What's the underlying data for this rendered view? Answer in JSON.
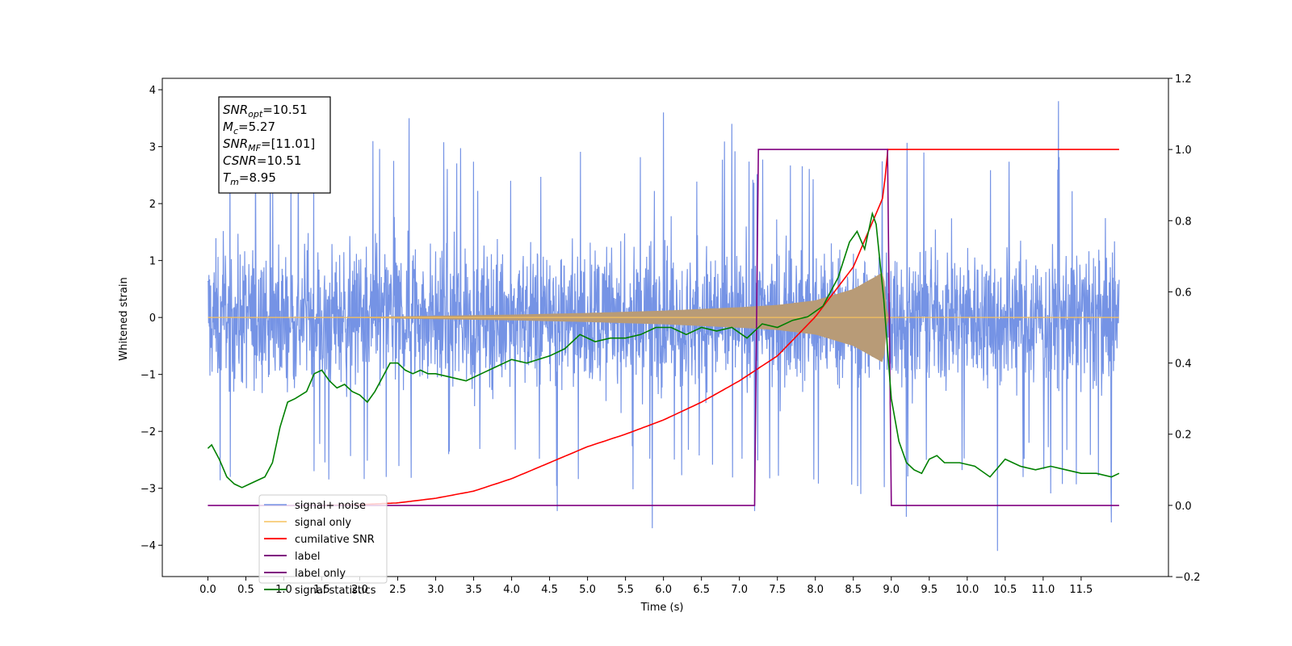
{
  "chart_data": {
    "type": "line",
    "xlabel": "Time (s)",
    "ylabel_left": "Whitened strain",
    "ylabel_right": "",
    "xlim": [
      -0.6,
      12.65
    ],
    "ylim_left": [
      -4.55,
      4.2
    ],
    "ylim_right": [
      -0.2,
      1.2
    ],
    "x_ticks": [
      0.0,
      0.5,
      1.0,
      1.5,
      2.0,
      2.5,
      3.0,
      3.5,
      4.0,
      4.5,
      5.0,
      5.5,
      6.0,
      6.5,
      7.0,
      7.5,
      8.0,
      8.5,
      9.0,
      9.5,
      10.0,
      10.5,
      11.0,
      11.5
    ],
    "x_tick_labels": [
      "0.0",
      "0.5",
      "1.0",
      "1.5",
      "2.0",
      "2.5",
      "3.0",
      "3.5",
      "4.0",
      "4.5",
      "5.0",
      "5.5",
      "6.0",
      "6.5",
      "7.0",
      "7.5",
      "8.0",
      "8.5",
      "9.0",
      "9.5",
      "10.0",
      "10.5",
      "11.0",
      "11.5"
    ],
    "y_left_ticks": [
      -4,
      -3,
      -2,
      -1,
      0,
      1,
      2,
      3,
      4
    ],
    "y_left_tick_labels": [
      "−4",
      "−3",
      "−2",
      "−1",
      "0",
      "1",
      "2",
      "3",
      "4"
    ],
    "y_right_ticks": [
      -0.2,
      0.0,
      0.2,
      0.4,
      0.6,
      0.8,
      1.0,
      1.2
    ],
    "y_right_tick_labels": [
      "−0.2",
      "0.0",
      "0.2",
      "0.4",
      "0.6",
      "0.8",
      "1.0",
      "1.2"
    ],
    "grid": false,
    "legend_position": "lower-left",
    "stats_box": [
      {
        "sym": "SNR",
        "sub": "opt",
        "val": "=10.51"
      },
      {
        "sym": "M",
        "sub": "c",
        "val": "=5.27"
      },
      {
        "sym": "SNR",
        "sub": "MF",
        "val": "=[11.01]"
      },
      {
        "sym": "CSNR",
        "sub": "",
        "val": "=10.51"
      },
      {
        "sym": "T",
        "sub": "m",
        "val": "=8.95"
      }
    ],
    "series": [
      {
        "name": "signal+ noise",
        "color": "#7593e5",
        "axis": "left",
        "kind": "noise",
        "x_range": [
          0.0,
          12.0
        ],
        "typical_range": [
          -2.0,
          2.2
        ],
        "peaks": [
          [
            1.4,
            -2.7
          ],
          [
            2.65,
            3.5
          ],
          [
            2.35,
            -2.8
          ],
          [
            4.6,
            -3.4
          ],
          [
            5.85,
            -3.7
          ],
          [
            6.0,
            3.6
          ],
          [
            6.9,
            3.4
          ],
          [
            7.2,
            -3.4
          ],
          [
            8.6,
            -3.1
          ],
          [
            9.2,
            -3.5
          ],
          [
            10.4,
            -4.1
          ],
          [
            11.2,
            3.8
          ],
          [
            11.9,
            -3.6
          ]
        ]
      },
      {
        "name": "signal only",
        "color": "#f6c25e",
        "axis": "left",
        "kind": "chirp",
        "x": [
          0.0,
          2.0,
          4.0,
          5.0,
          6.0,
          7.0,
          7.5,
          8.0,
          8.5,
          8.9,
          8.95,
          9.0,
          12.0
        ],
        "amplitude": [
          0.0,
          0.01,
          0.05,
          0.08,
          0.12,
          0.18,
          0.22,
          0.3,
          0.5,
          0.8,
          0.0,
          0.0,
          0.0
        ]
      },
      {
        "name": "cumilative SNR",
        "color": "#ff0000",
        "axis": "right",
        "x": [
          1.5,
          2.0,
          2.5,
          3.0,
          3.5,
          4.0,
          4.5,
          5.0,
          5.5,
          6.0,
          6.5,
          7.0,
          7.5,
          8.0,
          8.5,
          8.9,
          8.95,
          12.0
        ],
        "values": [
          0.0,
          0.002,
          0.007,
          0.02,
          0.04,
          0.075,
          0.12,
          0.165,
          0.2,
          0.24,
          0.29,
          0.35,
          0.42,
          0.53,
          0.67,
          0.87,
          1.0,
          1.0
        ]
      },
      {
        "name": "label",
        "color": "#800080",
        "axis": "right",
        "x": [
          0.0,
          7.2,
          7.25,
          8.95,
          9.0,
          12.0
        ],
        "values": [
          0.0,
          0.0,
          1.0,
          1.0,
          0.0,
          0.0
        ]
      },
      {
        "name": "label only",
        "color": "#800080",
        "axis": "right",
        "values": []
      },
      {
        "name": "signal statistics",
        "color": "#008000",
        "axis": "right",
        "x": [
          0.0,
          0.05,
          0.15,
          0.25,
          0.35,
          0.45,
          0.55,
          0.65,
          0.75,
          0.85,
          0.95,
          1.05,
          1.15,
          1.3,
          1.4,
          1.5,
          1.6,
          1.7,
          1.8,
          1.9,
          2.0,
          2.1,
          2.2,
          2.3,
          2.4,
          2.5,
          2.6,
          2.7,
          2.8,
          2.9,
          3.0,
          3.2,
          3.4,
          3.6,
          3.8,
          4.0,
          4.2,
          4.5,
          4.7,
          4.9,
          5.1,
          5.3,
          5.5,
          5.7,
          5.9,
          6.1,
          6.3,
          6.5,
          6.7,
          6.9,
          7.1,
          7.3,
          7.5,
          7.7,
          7.9,
          8.1,
          8.3,
          8.45,
          8.55,
          8.65,
          8.75,
          8.8,
          8.9,
          9.0,
          9.1,
          9.2,
          9.3,
          9.4,
          9.5,
          9.6,
          9.7,
          9.9,
          10.1,
          10.3,
          10.5,
          10.7,
          10.9,
          11.1,
          11.3,
          11.5,
          11.7,
          11.9,
          12.0
        ],
        "values": [
          0.16,
          0.17,
          0.13,
          0.08,
          0.06,
          0.05,
          0.06,
          0.07,
          0.08,
          0.12,
          0.22,
          0.29,
          0.3,
          0.32,
          0.37,
          0.38,
          0.35,
          0.33,
          0.34,
          0.32,
          0.31,
          0.29,
          0.32,
          0.36,
          0.4,
          0.4,
          0.38,
          0.37,
          0.38,
          0.37,
          0.37,
          0.36,
          0.35,
          0.37,
          0.39,
          0.41,
          0.4,
          0.42,
          0.44,
          0.48,
          0.46,
          0.47,
          0.47,
          0.48,
          0.5,
          0.5,
          0.48,
          0.5,
          0.49,
          0.5,
          0.47,
          0.51,
          0.5,
          0.52,
          0.53,
          0.56,
          0.64,
          0.74,
          0.77,
          0.72,
          0.82,
          0.79,
          0.58,
          0.3,
          0.18,
          0.12,
          0.1,
          0.09,
          0.13,
          0.14,
          0.12,
          0.12,
          0.11,
          0.08,
          0.13,
          0.11,
          0.1,
          0.11,
          0.1,
          0.09,
          0.09,
          0.08,
          0.09
        ]
      }
    ]
  }
}
